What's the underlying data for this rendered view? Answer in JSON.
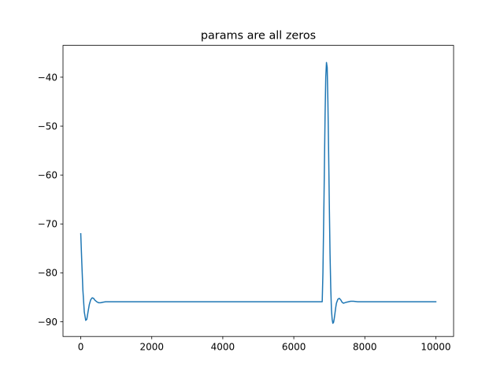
{
  "chart_data": {
    "type": "line",
    "title": "params are all zeros",
    "xlabel": "",
    "ylabel": "",
    "xlim": [
      -500,
      10500
    ],
    "ylim": [
      -93,
      -33.5
    ],
    "grid": false,
    "x_ticks": [
      0,
      2000,
      4000,
      6000,
      8000,
      10000
    ],
    "y_ticks": [
      -90,
      -80,
      -70,
      -60,
      -50,
      -40
    ],
    "series": [
      {
        "color": "#1f77b4",
        "x": [
          0,
          30,
          60,
          100,
          140,
          170,
          200,
          240,
          280,
          320,
          360,
          400,
          450,
          500,
          560,
          620,
          700,
          800,
          1000,
          2000,
          4000,
          6000,
          6800,
          6820,
          6850,
          6880,
          6900,
          6920,
          6940,
          6960,
          6980,
          7000,
          7020,
          7040,
          7060,
          7080,
          7100,
          7120,
          7140,
          7160,
          7180,
          7200,
          7240,
          7280,
          7320,
          7360,
          7400,
          7440,
          7480,
          7540,
          7600,
          7680,
          7800,
          8000,
          9000,
          10000
        ],
        "y": [
          -72,
          -78,
          -83.5,
          -88,
          -89.7,
          -89.5,
          -88.2,
          -86.5,
          -85.5,
          -85.1,
          -85.2,
          -85.6,
          -85.9,
          -86.1,
          -86.1,
          -86.0,
          -85.9,
          -85.9,
          -85.9,
          -85.9,
          -85.9,
          -85.9,
          -85.9,
          -80,
          -65,
          -48,
          -40,
          -37,
          -38,
          -45,
          -55,
          -66,
          -76,
          -83,
          -87.5,
          -89.5,
          -90.3,
          -90.1,
          -89.3,
          -88.2,
          -87.1,
          -86.2,
          -85.4,
          -85.2,
          -85.5,
          -86.0,
          -86.2,
          -86.1,
          -86.0,
          -85.9,
          -85.8,
          -85.8,
          -85.9,
          -85.9,
          -85.9,
          -85.9
        ]
      }
    ]
  }
}
